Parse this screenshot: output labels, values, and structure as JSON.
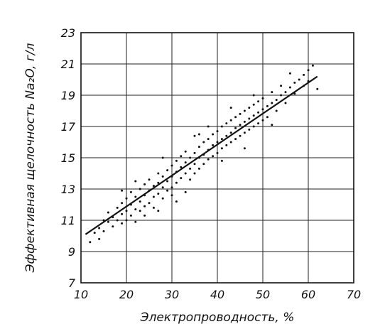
{
  "chart_data": {
    "type": "scatter",
    "title": "",
    "xlabel": "Электропроводность, %",
    "ylabel": "Эффективная щелочность Na₂O, г/л",
    "xlim": [
      10,
      70
    ],
    "ylim": [
      7,
      23
    ],
    "x_ticks": [
      "10",
      "20",
      "30",
      "40",
      "50",
      "60",
      "70"
    ],
    "y_ticks": [
      "7",
      "9",
      "11",
      "13",
      "15",
      "17",
      "19",
      "21",
      "23"
    ],
    "grid": true,
    "trend_line": {
      "x": [
        11,
        62
      ],
      "y": [
        10.1,
        20.2
      ]
    },
    "series": [
      {
        "points": [
          [
            12,
            9.6
          ],
          [
            13,
            10.2
          ],
          [
            14,
            10.5
          ],
          [
            14,
            9.8
          ],
          [
            15,
            11.0
          ],
          [
            15,
            10.3
          ],
          [
            16,
            10.9
          ],
          [
            16,
            11.5
          ],
          [
            17,
            11.2
          ],
          [
            17,
            10.6
          ],
          [
            18,
            11.8
          ],
          [
            18,
            11.0
          ],
          [
            19,
            12.1
          ],
          [
            19,
            11.4
          ],
          [
            19,
            10.8
          ],
          [
            20,
            11.6
          ],
          [
            20,
            12.4
          ],
          [
            20,
            11.0
          ],
          [
            21,
            12.0
          ],
          [
            21,
            11.3
          ],
          [
            21,
            12.8
          ],
          [
            22,
            11.7
          ],
          [
            22,
            12.5
          ],
          [
            22,
            10.9
          ],
          [
            23,
            12.2
          ],
          [
            23,
            13.0
          ],
          [
            23,
            11.6
          ],
          [
            24,
            12.6
          ],
          [
            24,
            11.9
          ],
          [
            24,
            13.3
          ],
          [
            25,
            12.9
          ],
          [
            25,
            12.1
          ],
          [
            25,
            13.6
          ],
          [
            26,
            12.5
          ],
          [
            26,
            13.2
          ],
          [
            26,
            11.8
          ],
          [
            27,
            13.4
          ],
          [
            27,
            12.7
          ],
          [
            27,
            14.0
          ],
          [
            28,
            13.1
          ],
          [
            28,
            13.8
          ],
          [
            28,
            12.4
          ],
          [
            29,
            13.5
          ],
          [
            29,
            14.2
          ],
          [
            29,
            12.9
          ],
          [
            30,
            13.8
          ],
          [
            30,
            14.5
          ],
          [
            30,
            13.1
          ],
          [
            30,
            12.6
          ],
          [
            31,
            14.1
          ],
          [
            31,
            14.8
          ],
          [
            31,
            13.4
          ],
          [
            32,
            14.4
          ],
          [
            32,
            15.1
          ],
          [
            32,
            13.7
          ],
          [
            33,
            14.0
          ],
          [
            33,
            14.7
          ],
          [
            33,
            15.4
          ],
          [
            34,
            14.3
          ],
          [
            34,
            15.0
          ],
          [
            34,
            13.6
          ],
          [
            35,
            14.6
          ],
          [
            35,
            15.3
          ],
          [
            35,
            14.0
          ],
          [
            36,
            15.0
          ],
          [
            36,
            15.7
          ],
          [
            36,
            14.3
          ],
          [
            37,
            15.2
          ],
          [
            37,
            14.6
          ],
          [
            37,
            16.0
          ],
          [
            38,
            15.5
          ],
          [
            38,
            14.9
          ],
          [
            38,
            16.2
          ],
          [
            39,
            15.8
          ],
          [
            39,
            15.1
          ],
          [
            39,
            16.5
          ],
          [
            40,
            16.0
          ],
          [
            40,
            15.3
          ],
          [
            40,
            16.7
          ],
          [
            41,
            16.2
          ],
          [
            41,
            15.6
          ],
          [
            41,
            17.0
          ],
          [
            42,
            16.4
          ],
          [
            42,
            15.8
          ],
          [
            42,
            17.2
          ],
          [
            43,
            16.6
          ],
          [
            43,
            16.0
          ],
          [
            43,
            17.4
          ],
          [
            44,
            16.9
          ],
          [
            44,
            16.2
          ],
          [
            44,
            17.6
          ],
          [
            45,
            17.1
          ],
          [
            45,
            16.4
          ],
          [
            45,
            17.8
          ],
          [
            46,
            17.3
          ],
          [
            46,
            16.6
          ],
          [
            46,
            18.0
          ],
          [
            47,
            17.5
          ],
          [
            47,
            16.8
          ],
          [
            47,
            18.2
          ],
          [
            48,
            17.7
          ],
          [
            48,
            17.0
          ],
          [
            48,
            18.4
          ],
          [
            49,
            17.9
          ],
          [
            49,
            17.2
          ],
          [
            49,
            18.6
          ],
          [
            50,
            18.1
          ],
          [
            50,
            17.4
          ],
          [
            50,
            18.8
          ],
          [
            51,
            18.3
          ],
          [
            51,
            17.6
          ],
          [
            52,
            18.5
          ],
          [
            52,
            19.2
          ],
          [
            53,
            18.7
          ],
          [
            53,
            18.0
          ],
          [
            54,
            19.0
          ],
          [
            54,
            19.6
          ],
          [
            55,
            19.2
          ],
          [
            55,
            18.5
          ],
          [
            56,
            19.5
          ],
          [
            57,
            19.8
          ],
          [
            57,
            19.1
          ],
          [
            58,
            20.0
          ],
          [
            59,
            20.3
          ],
          [
            59,
            19.6
          ],
          [
            60,
            20.6
          ],
          [
            60,
            19.9
          ],
          [
            61,
            20.9
          ],
          [
            62,
            19.4
          ],
          [
            56,
            20.4
          ],
          [
            24,
            11.3
          ],
          [
            28,
            15.0
          ],
          [
            33,
            12.8
          ],
          [
            36,
            16.5
          ],
          [
            41,
            14.8
          ],
          [
            46,
            15.6
          ],
          [
            52,
            17.1
          ],
          [
            31,
            12.2
          ],
          [
            43,
            18.2
          ],
          [
            38,
            17.0
          ],
          [
            27,
            11.6
          ],
          [
            22,
            13.5
          ],
          [
            19,
            12.9
          ],
          [
            35,
            16.4
          ],
          [
            48,
            19.0
          ]
        ]
      }
    ]
  }
}
